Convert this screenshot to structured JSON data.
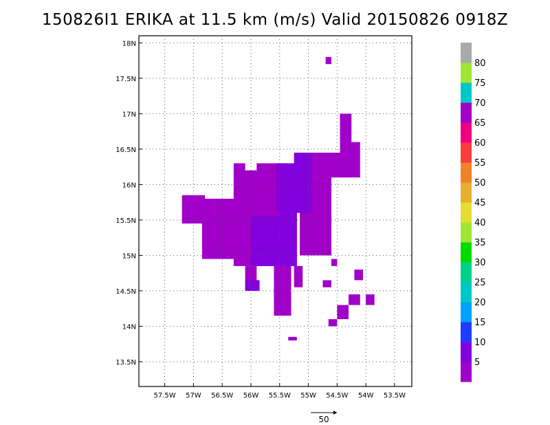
{
  "chart_data": {
    "type": "heatmap",
    "title": "150826I1 ERIKA at 11.5 km (m/s) Valid 20150826 0918Z",
    "xlim": [
      -57.95,
      -53.2
    ],
    "ylim": [
      13.15,
      18.1
    ],
    "x_ticks": [
      {
        "value": -57.5,
        "label": "57.5W"
      },
      {
        "value": -57.0,
        "label": "57W"
      },
      {
        "value": -56.5,
        "label": "56.5W"
      },
      {
        "value": -56.0,
        "label": "56W"
      },
      {
        "value": -55.5,
        "label": "55.5W"
      },
      {
        "value": -55.0,
        "label": "55W"
      },
      {
        "value": -54.5,
        "label": "54.5W"
      },
      {
        "value": -54.0,
        "label": "54W"
      },
      {
        "value": -53.5,
        "label": "53.5W"
      }
    ],
    "y_ticks": [
      {
        "value": 13.5,
        "label": "13.5N"
      },
      {
        "value": 14.0,
        "label": "14N"
      },
      {
        "value": 14.5,
        "label": "14.5N"
      },
      {
        "value": 15.0,
        "label": "15N"
      },
      {
        "value": 15.5,
        "label": "15.5N"
      },
      {
        "value": 16.0,
        "label": "16N"
      },
      {
        "value": 16.5,
        "label": "16.5N"
      },
      {
        "value": 17.0,
        "label": "17N"
      },
      {
        "value": 17.5,
        "label": "17.5N"
      },
      {
        "value": 18.0,
        "label": "18N"
      }
    ],
    "grid": "dotted",
    "colorbar": {
      "labels": [
        "5",
        "10",
        "15",
        "20",
        "25",
        "30",
        "35",
        "40",
        "45",
        "50",
        "55",
        "60",
        "65",
        "70",
        "75",
        "80"
      ],
      "colors": [
        "#a000c8",
        "#8200dc",
        "#1e3cff",
        "#00a0ff",
        "#00c8c8",
        "#00d28c",
        "#00dc00",
        "#a0e632",
        "#e6dc32",
        "#e6af2d",
        "#f08228",
        "#fa3c3c",
        "#f00082",
        "#a000c8",
        "#00c8c8",
        "#a0e632",
        "#aaaaaa"
      ]
    },
    "reference_vector": {
      "label": "50"
    },
    "regions": [
      {
        "name": "purple-main-1",
        "level": "5",
        "lon": [
          -56.85,
          -56.15
        ],
        "lat": [
          14.95,
          15.8
        ]
      },
      {
        "name": "purple-main-2",
        "level": "5",
        "lon": [
          -56.3,
          -55.2
        ],
        "lat": [
          14.85,
          16.2
        ]
      },
      {
        "name": "purple-main-3",
        "level": "5",
        "lon": [
          -55.15,
          -54.6
        ],
        "lat": [
          15.0,
          16.1
        ]
      },
      {
        "name": "purple-left-arm-1",
        "level": "5",
        "lon": [
          -57.2,
          -56.8
        ],
        "lat": [
          15.45,
          15.85
        ]
      },
      {
        "name": "purple-left-arm-2",
        "level": "5",
        "lon": [
          -56.75,
          -56.4
        ],
        "lat": [
          15.4,
          15.6
        ]
      },
      {
        "name": "purple-north-spur",
        "level": "5",
        "lon": [
          -56.3,
          -56.1
        ],
        "lat": [
          15.8,
          16.3
        ]
      },
      {
        "name": "purple-central-north",
        "level": "5",
        "lon": [
          -55.9,
          -55.35
        ],
        "lat": [
          15.9,
          16.3
        ]
      },
      {
        "name": "purple-east-1",
        "level": "5",
        "lon": [
          -55.05,
          -54.25
        ],
        "lat": [
          16.1,
          16.45
        ]
      },
      {
        "name": "purple-east-2",
        "level": "5",
        "lon": [
          -54.45,
          -54.1
        ],
        "lat": [
          16.1,
          16.6
        ]
      },
      {
        "name": "purple-east-3",
        "level": "5",
        "lon": [
          -54.45,
          -54.25
        ],
        "lat": [
          16.6,
          17.0
        ]
      },
      {
        "name": "purple-south-1",
        "level": "5",
        "lon": [
          -56.1,
          -55.9
        ],
        "lat": [
          14.5,
          14.85
        ]
      },
      {
        "name": "purple-south-2",
        "level": "5",
        "lon": [
          -55.6,
          -55.3
        ],
        "lat": [
          14.15,
          14.85
        ]
      },
      {
        "name": "purple-south-3",
        "level": "5",
        "lon": [
          -55.25,
          -55.1
        ],
        "lat": [
          14.55,
          14.85
        ]
      },
      {
        "name": "blue-core-1",
        "level": "10",
        "lon": [
          -56.0,
          -55.5
        ],
        "lat": [
          14.85,
          15.55
        ]
      },
      {
        "name": "blue-core-2",
        "level": "10",
        "lon": [
          -55.5,
          -55.2
        ],
        "lat": [
          14.85,
          15.9
        ]
      },
      {
        "name": "blue-core-3",
        "level": "10",
        "lon": [
          -55.55,
          -54.95
        ],
        "lat": [
          15.6,
          16.3
        ]
      },
      {
        "name": "blue-core-4",
        "level": "10",
        "lon": [
          -55.25,
          -54.95
        ],
        "lat": [
          16.2,
          16.45
        ]
      },
      {
        "name": "blue-core-5",
        "level": "10",
        "lon": [
          -56.1,
          -55.85
        ],
        "lat": [
          14.5,
          14.65
        ]
      },
      {
        "name": "purple-speck-1",
        "level": "5",
        "lon": [
          -54.7,
          -54.6
        ],
        "lat": [
          17.7,
          17.8
        ]
      },
      {
        "name": "purple-speck-2",
        "level": "5",
        "lon": [
          -54.6,
          -54.5
        ],
        "lat": [
          14.85,
          14.95
        ]
      },
      {
        "name": "purple-speck-3",
        "level": "5",
        "lon": [
          -54.75,
          -54.6
        ],
        "lat": [
          14.55,
          14.65
        ]
      },
      {
        "name": "purple-speck-4",
        "level": "5",
        "lon": [
          -54.2,
          -54.05
        ],
        "lat": [
          14.65,
          14.8
        ]
      },
      {
        "name": "purple-speck-5",
        "level": "5",
        "lon": [
          -54.3,
          -54.1
        ],
        "lat": [
          14.3,
          14.45
        ]
      },
      {
        "name": "purple-speck-6",
        "level": "5",
        "lon": [
          -54.5,
          -54.3
        ],
        "lat": [
          14.1,
          14.3
        ]
      },
      {
        "name": "purple-speck-7",
        "level": "5",
        "lon": [
          -54.65,
          -54.5
        ],
        "lat": [
          14.0,
          14.1
        ]
      },
      {
        "name": "purple-speck-8",
        "level": "5",
        "lon": [
          -54.0,
          -53.85
        ],
        "lat": [
          14.3,
          14.45
        ]
      },
      {
        "name": "purple-speck-9",
        "level": "5",
        "lon": [
          -55.35,
          -55.2
        ],
        "lat": [
          13.8,
          13.85
        ]
      }
    ]
  }
}
